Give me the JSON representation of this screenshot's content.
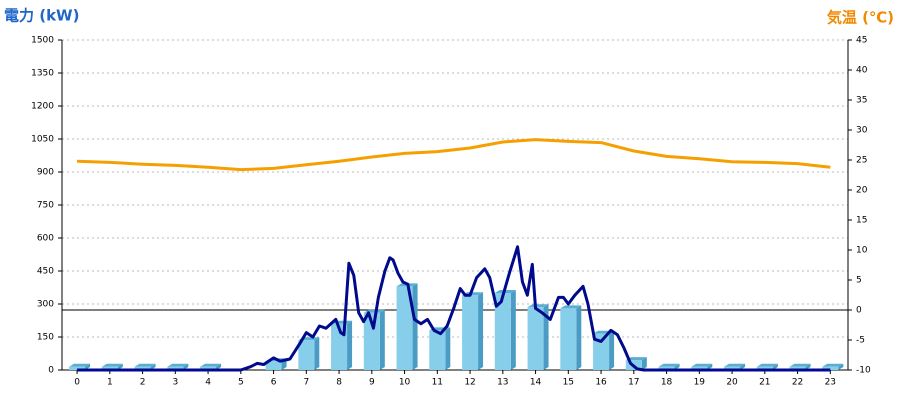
{
  "chart_data": {
    "type": "combo",
    "y_label": "電力 (kW)",
    "y2_label": "気温 (℃)",
    "xlim": [
      -0.46,
      23.54
    ],
    "xticks": [
      0,
      1,
      2,
      3,
      4,
      5,
      6,
      7,
      8,
      9,
      10,
      11,
      12,
      13,
      14,
      15,
      16,
      17,
      18,
      19,
      20,
      21,
      22,
      23
    ],
    "ylim": [
      0,
      1500
    ],
    "yticks": [
      0,
      150,
      300,
      450,
      600,
      750,
      900,
      1050,
      1200,
      1350,
      1500
    ],
    "y2lim": [
      -10,
      45
    ],
    "y2ticks": [
      -10,
      -5,
      0,
      5,
      10,
      15,
      20,
      25,
      30,
      35,
      40,
      45
    ],
    "grid": true,
    "series": [
      {
        "type": "bar",
        "color": "#87ceeb",
        "x": [
          0,
          1,
          2,
          3,
          4,
          5,
          6,
          7,
          8,
          9,
          10,
          11,
          12,
          13,
          14,
          15,
          16,
          17,
          18,
          19,
          20,
          21,
          22,
          23
        ],
        "values": [
          15,
          15,
          15,
          15,
          15,
          0,
          40,
          135,
          210,
          260,
          380,
          180,
          340,
          350,
          285,
          280,
          165,
          45,
          15,
          15,
          15,
          15,
          15,
          15
        ]
      },
      {
        "type": "line",
        "color": "#000a8c",
        "x": [
          0,
          5,
          5.3,
          5.5,
          5.7,
          6,
          6.2,
          6.5,
          6.8,
          7,
          7.2,
          7.4,
          7.6,
          7.9,
          8.05,
          8.15,
          8.3,
          8.45,
          8.6,
          8.75,
          8.9,
          9.05,
          9.2,
          9.4,
          9.55,
          9.65,
          9.8,
          9.95,
          10.1,
          10.3,
          10.5,
          10.7,
          10.9,
          11.1,
          11.3,
          11.5,
          11.7,
          11.85,
          12,
          12.2,
          12.45,
          12.6,
          12.8,
          12.95,
          13.2,
          13.45,
          13.6,
          13.75,
          13.9,
          14,
          14.2,
          14.45,
          14.7,
          14.85,
          15,
          15.2,
          15.45,
          15.6,
          15.8,
          16,
          16.3,
          16.5,
          16.7,
          16.9,
          17.1,
          17.3,
          23
        ],
        "values": [
          0,
          0,
          15,
          30,
          25,
          55,
          40,
          50,
          120,
          170,
          150,
          200,
          190,
          230,
          170,
          160,
          485,
          430,
          260,
          220,
          260,
          190,
          330,
          450,
          510,
          500,
          440,
          400,
          390,
          230,
          210,
          230,
          180,
          165,
          200,
          280,
          370,
          340,
          340,
          420,
          460,
          420,
          290,
          310,
          440,
          560,
          400,
          340,
          480,
          280,
          260,
          230,
          330,
          330,
          300,
          340,
          380,
          300,
          140,
          130,
          180,
          160,
          100,
          30,
          5,
          0,
          0
        ]
      },
      {
        "type": "line",
        "color": "#f5a000",
        "axis": "y2",
        "x": [
          0,
          1,
          2,
          3,
          4,
          5,
          6,
          7,
          8,
          9,
          10,
          11,
          12,
          13,
          14,
          15,
          16,
          17,
          18,
          19,
          20,
          21,
          22,
          23
        ],
        "values": [
          24.8,
          24.6,
          24.3,
          24.1,
          23.8,
          23.4,
          23.6,
          24.2,
          24.8,
          25.5,
          26.1,
          26.4,
          27.0,
          28.0,
          28.4,
          28.1,
          27.9,
          26.5,
          25.6,
          25.2,
          24.7,
          24.6,
          24.4,
          23.8
        ]
      }
    ]
  }
}
